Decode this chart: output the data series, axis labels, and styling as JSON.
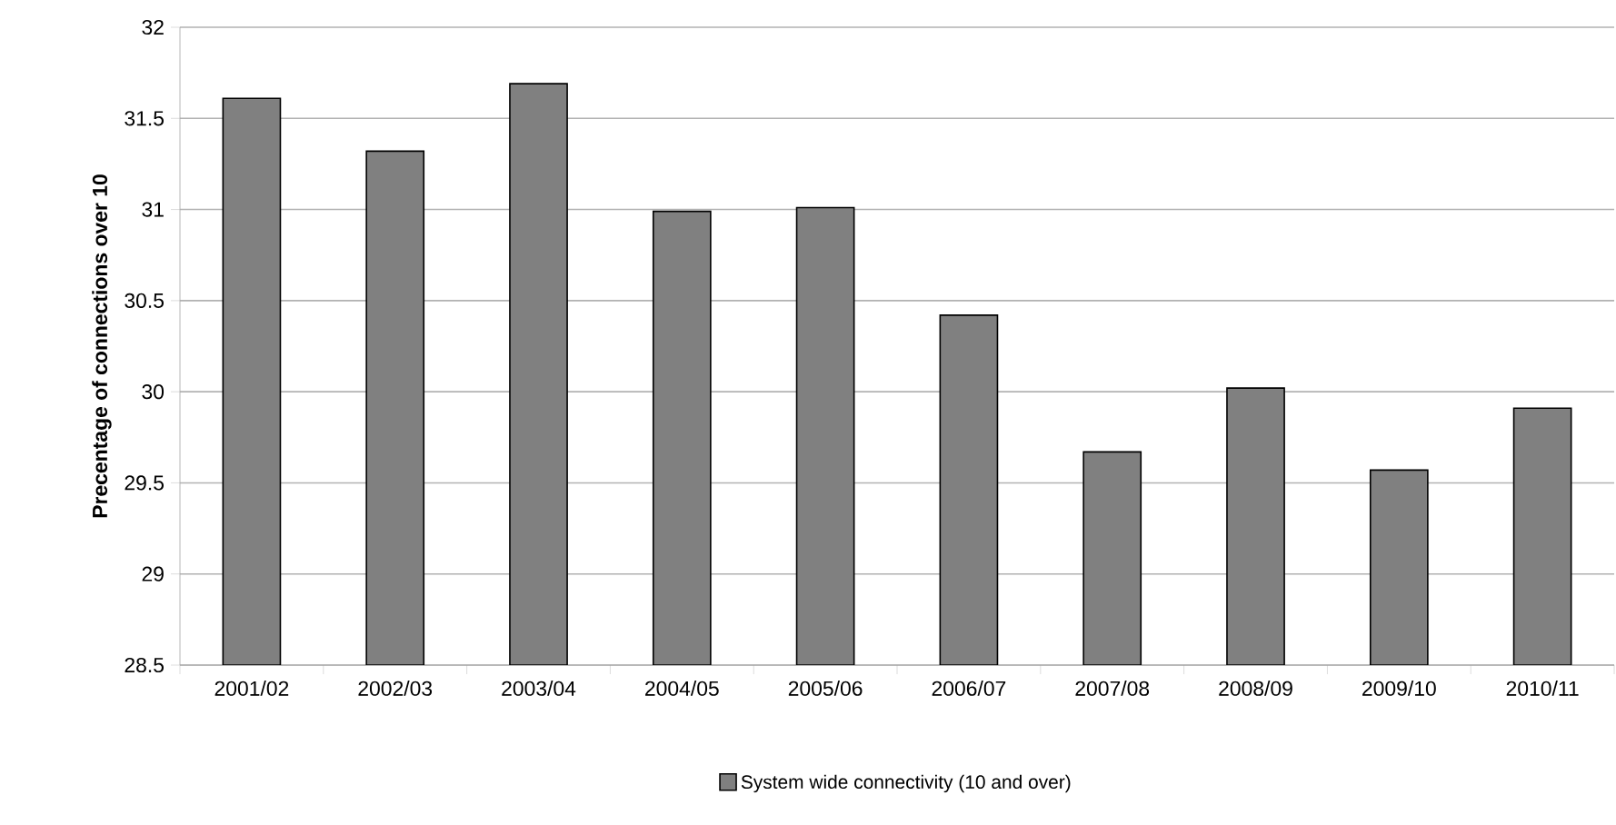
{
  "chart_data": {
    "type": "bar",
    "ylabel": "Precentage of connections over 10",
    "categories": [
      "2001/02",
      "2002/03",
      "2003/04",
      "2004/05",
      "2005/06",
      "2006/07",
      "2007/08",
      "2008/09",
      "2009/10",
      "2010/11"
    ],
    "series": [
      {
        "name": "System wide connectivity (10 and over)",
        "color": "#808080",
        "values": [
          31.61,
          31.32,
          31.69,
          30.99,
          31.01,
          30.42,
          29.67,
          30.02,
          29.57,
          29.91
        ]
      }
    ],
    "ylim": [
      28.5,
      32
    ],
    "yticks": [
      28.5,
      29,
      29.5,
      30,
      30.5,
      31,
      31.5,
      32
    ],
    "grid": "y",
    "legend": "bottom"
  }
}
